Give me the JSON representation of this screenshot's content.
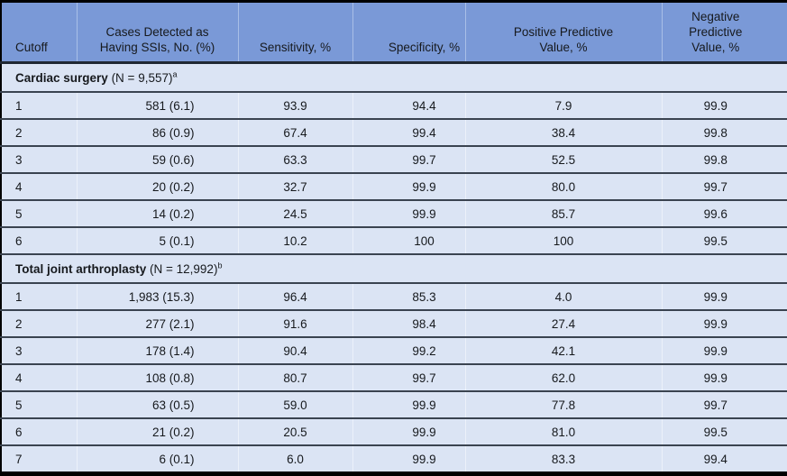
{
  "table": {
    "columns": [
      {
        "label": "Cutoff"
      },
      {
        "label": "Cases Detected as\nHaving SSIs, No. (%)"
      },
      {
        "label": "Sensitivity, %"
      },
      {
        "label": "Specificity, %"
      },
      {
        "label": "Positive Predictive\nValue, %"
      },
      {
        "label": "Negative Predictive\nValue, %"
      }
    ],
    "sections": [
      {
        "label_bold": "Cardiac surgery",
        "label_normal": " (N = 9,557)",
        "superscript": "a",
        "rows": [
          {
            "cutoff": "1",
            "cases": "581 (6.1)",
            "sensitivity": "93.9",
            "specificity": "94.4",
            "ppv": "7.9",
            "npv": "99.9"
          },
          {
            "cutoff": "2",
            "cases": "86 (0.9)",
            "sensitivity": "67.4",
            "specificity": "99.4",
            "ppv": "38.4",
            "npv": "99.8"
          },
          {
            "cutoff": "3",
            "cases": "59 (0.6)",
            "sensitivity": "63.3",
            "specificity": "99.7",
            "ppv": "52.5",
            "npv": "99.8"
          },
          {
            "cutoff": "4",
            "cases": "20 (0.2)",
            "sensitivity": "32.7",
            "specificity": "99.9",
            "ppv": "80.0",
            "npv": "99.7"
          },
          {
            "cutoff": "5",
            "cases": "14 (0.2)",
            "sensitivity": "24.5",
            "specificity": "99.9",
            "ppv": "85.7",
            "npv": "99.6"
          },
          {
            "cutoff": "6",
            "cases": "5 (0.1)",
            "sensitivity": "10.2",
            "specificity": "100",
            "ppv": "100",
            "npv": "99.5"
          }
        ]
      },
      {
        "label_bold": "Total joint arthroplasty",
        "label_normal": " (N = 12,992)",
        "superscript": "b",
        "rows": [
          {
            "cutoff": "1",
            "cases": "1,983 (15.3)",
            "sensitivity": "96.4",
            "specificity": "85.3",
            "ppv": "4.0",
            "npv": "99.9"
          },
          {
            "cutoff": "2",
            "cases": "277 (2.1)",
            "sensitivity": "91.6",
            "specificity": "98.4",
            "ppv": "27.4",
            "npv": "99.9"
          },
          {
            "cutoff": "3",
            "cases": "178 (1.4)",
            "sensitivity": "90.4",
            "specificity": "99.2",
            "ppv": "42.1",
            "npv": "99.9"
          },
          {
            "cutoff": "4",
            "cases": "108 (0.8)",
            "sensitivity": "80.7",
            "specificity": "99.7",
            "ppv": "62.0",
            "npv": "99.9"
          },
          {
            "cutoff": "5",
            "cases": "63 (0.5)",
            "sensitivity": "59.0",
            "specificity": "99.9",
            "ppv": "77.8",
            "npv": "99.7"
          },
          {
            "cutoff": "6",
            "cases": "21 (0.2)",
            "sensitivity": "20.5",
            "specificity": "99.9",
            "ppv": "81.0",
            "npv": "99.5"
          },
          {
            "cutoff": "7",
            "cases": "6 (0.1)",
            "sensitivity": "6.0",
            "specificity": "99.9",
            "ppv": "83.3",
            "npv": "99.4"
          }
        ]
      }
    ]
  },
  "colors": {
    "header_fill": "#7a99d7",
    "header_divider": "#a9bfe7",
    "body_fill": "#dbe4f4",
    "row_separator": "#3a4350",
    "outer_border": "#000000",
    "text": "#16191d"
  }
}
